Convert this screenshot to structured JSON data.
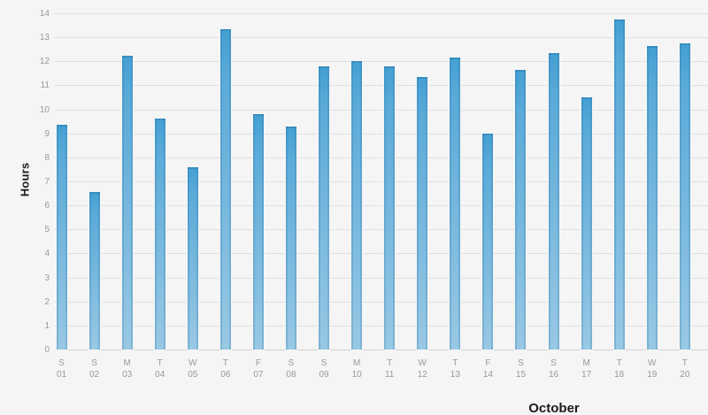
{
  "chart_data": {
    "type": "bar",
    "title": "",
    "ylabel": "Hours",
    "xlabel": "October",
    "ylim": [
      0,
      14
    ],
    "ytick_step": 1,
    "grid": true,
    "legend_position": "none",
    "yticks": [
      "0",
      "1",
      "2",
      "3",
      "4",
      "5",
      "6",
      "7",
      "8",
      "9",
      "10",
      "11",
      "12",
      "13",
      "14"
    ],
    "categories": [
      "01",
      "02",
      "03",
      "04",
      "05",
      "06",
      "07",
      "08",
      "09",
      "10",
      "11",
      "12",
      "13",
      "14",
      "15",
      "16",
      "17",
      "18",
      "19",
      "20"
    ],
    "weekdays": [
      "S",
      "S",
      "M",
      "T",
      "W",
      "T",
      "F",
      "S",
      "S",
      "M",
      "T",
      "W",
      "T",
      "F",
      "S",
      "S",
      "M",
      "T",
      "W",
      "T"
    ],
    "values": [
      9.35,
      6.55,
      12.25,
      9.6,
      7.6,
      13.35,
      9.8,
      9.3,
      11.8,
      12.0,
      11.8,
      11.35,
      12.15,
      9.0,
      11.65,
      12.35,
      10.5,
      13.75,
      12.65,
      12.75
    ],
    "colors": {
      "background": "#f5f5f5",
      "bar_gradient_top": "#459fd2",
      "bar_gradient_bottom": "#99c8e4",
      "bar_edge": "rgba(30,110,160,0.25)",
      "gridline": "#e0e0e0",
      "axis_line": "#d2d2d2",
      "tick_text": "#999999",
      "title_text": "#1a1a1a"
    }
  }
}
